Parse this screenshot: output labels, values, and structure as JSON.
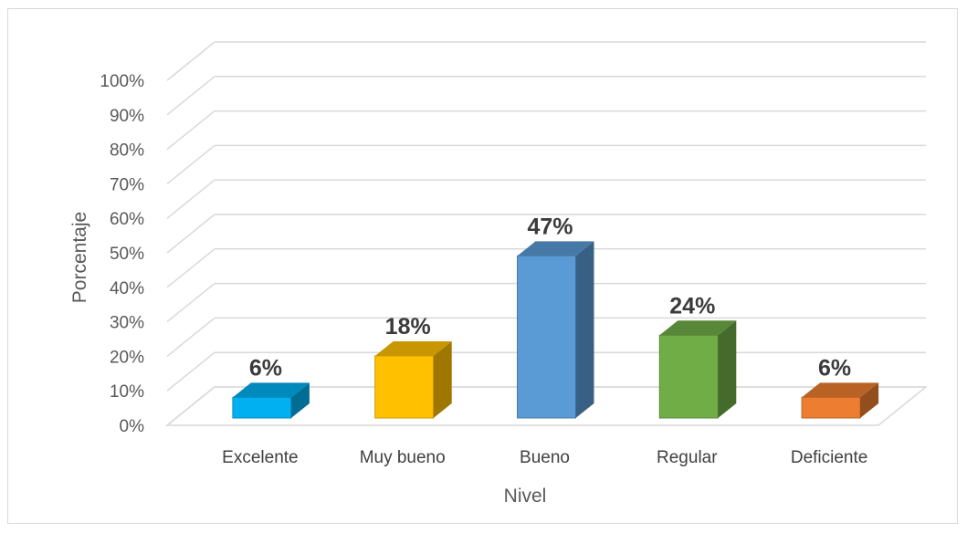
{
  "chart_data": {
    "type": "bar",
    "categories": [
      "Excelente",
      "Muy bueno",
      "Bueno",
      "Regular",
      "Deficiente"
    ],
    "values": [
      6,
      18,
      47,
      24,
      6
    ],
    "data_labels": [
      "6%",
      "18%",
      "47%",
      "24%",
      "6%"
    ],
    "colors": [
      "#00b0f0",
      "#ffc000",
      "#5b9bd5",
      "#70ad47",
      "#ed7d31"
    ],
    "xlabel": "Nivel",
    "ylabel": "Porcentaje",
    "ylim": [
      0,
      100
    ],
    "yticks": [
      "0%",
      "10%",
      "20%",
      "30%",
      "40%",
      "50%",
      "60%",
      "70%",
      "80%",
      "90%",
      "100%"
    ],
    "grid": true,
    "style": "3d-column"
  }
}
